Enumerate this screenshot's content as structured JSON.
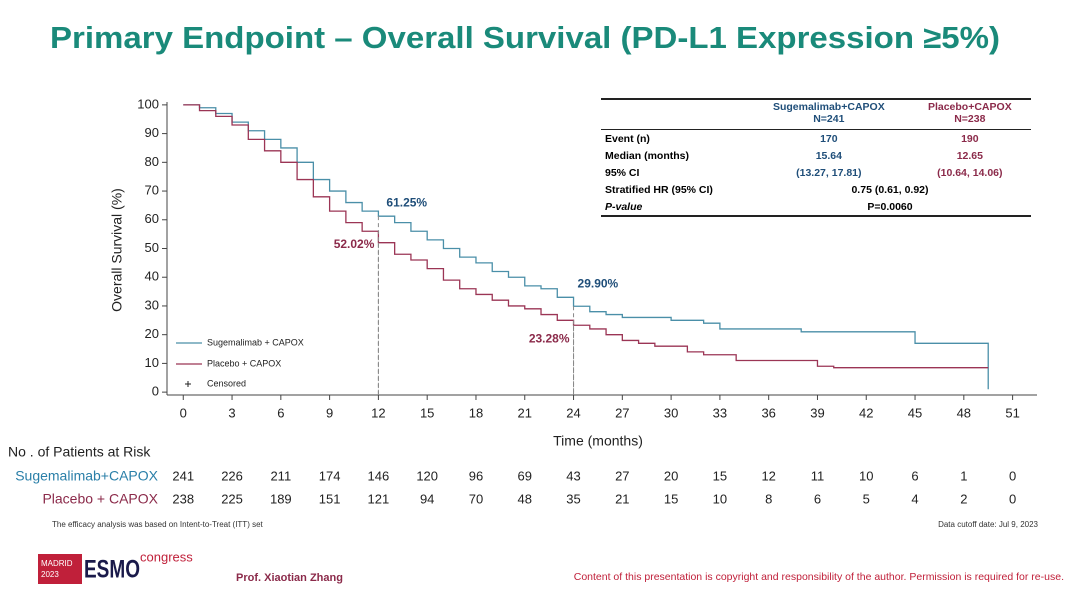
{
  "slide_title": "Primary Endpoint – Overall Survival (PD-L1 Expression ≥5%)",
  "chart_data": {
    "type": "line",
    "step": true,
    "ylabel": "Overall Survival (%)",
    "xlabel": "Time (months)",
    "xlim": [
      -1,
      52.5
    ],
    "ylim": [
      -1,
      101
    ],
    "xticks": [
      0,
      3,
      6,
      9,
      12,
      15,
      18,
      21,
      24,
      27,
      30,
      33,
      36,
      39,
      42,
      45,
      48,
      51
    ],
    "yticks": [
      0,
      10,
      20,
      30,
      40,
      50,
      60,
      70,
      80,
      90,
      100
    ],
    "x": [
      0,
      1,
      2,
      3,
      4,
      5,
      6,
      7,
      8,
      9,
      10,
      11,
      12,
      13,
      14,
      15,
      16,
      17,
      18,
      19,
      20,
      21,
      22,
      23,
      24,
      25,
      26,
      27,
      28,
      29,
      30,
      31,
      32,
      33,
      34,
      35,
      36,
      37,
      38,
      39,
      40,
      41,
      42,
      43,
      44,
      45,
      46,
      47,
      48,
      49,
      49.5
    ],
    "series": [
      {
        "name": "Sugemalimab + CAPOX",
        "color": "#4a8fa8",
        "values": [
          100,
          99,
          97,
          94,
          91,
          88,
          85,
          80,
          74,
          70,
          66,
          63,
          61.25,
          59,
          56,
          53,
          50,
          47,
          45,
          42,
          40,
          37,
          36,
          33,
          29.9,
          28,
          27,
          26,
          26,
          26,
          25,
          25,
          24,
          22,
          22,
          22,
          22,
          22,
          21,
          21,
          21,
          21,
          21,
          21,
          21,
          17,
          17,
          17,
          17,
          17,
          1
        ]
      },
      {
        "name": "Placebo + CAPOX",
        "color": "#9b3555",
        "values": [
          100,
          98,
          96,
          93,
          88,
          84,
          80,
          74,
          68,
          63,
          59,
          56,
          52.02,
          48,
          46,
          43,
          39,
          36,
          34,
          32,
          30,
          29,
          27,
          25,
          23.28,
          22,
          20,
          18,
          17,
          16,
          16,
          14,
          13,
          13,
          11,
          11,
          11,
          11,
          11,
          9,
          8.5,
          8.5,
          8.5,
          8.5,
          8.5,
          8.5,
          8.5,
          8.5,
          8.5,
          8.5,
          8.5
        ]
      }
    ],
    "censored_label": "Censored",
    "annotations": [
      {
        "text": "61.25%",
        "x": 12,
        "y": 61.25,
        "color": "#1f4e79"
      },
      {
        "text": "52.02%",
        "x": 12,
        "y": 52.02,
        "color": "#8b2a4a"
      },
      {
        "text": "29.90%",
        "x": 24,
        "y": 29.9,
        "color": "#1f4e79"
      },
      {
        "text": "23.28%",
        "x": 24,
        "y": 23.28,
        "color": "#8b2a4a"
      }
    ]
  },
  "hr_table": {
    "header": [
      [
        "Sugemalimab+CAPOX",
        "N=241"
      ],
      [
        "Placebo+CAPOX",
        "N=238"
      ]
    ],
    "rows": [
      [
        "Event (n)",
        "170",
        "190"
      ],
      [
        "Median (months)",
        "15.64",
        "12.65"
      ],
      [
        "95% CI",
        "(13.27, 17.81)",
        "(10.64, 14.06)"
      ],
      [
        "Stratified HR (95% CI)",
        "0.75 (0.61, 0.92)"
      ],
      [
        "P-value",
        "P=0.0060"
      ]
    ]
  },
  "risk_table": {
    "title": "No . of Patients at Risk",
    "rows": [
      {
        "label": "Sugemalimab+CAPOX",
        "values": [
          "241",
          "226",
          "211",
          "174",
          "146",
          "120",
          "96",
          "69",
          "43",
          "27",
          "20",
          "15",
          "12",
          "11",
          "10",
          "6",
          "1",
          "0"
        ]
      },
      {
        "label": "Placebo + CAPOX",
        "values": [
          "238",
          "225",
          "189",
          "151",
          "121",
          "94",
          "70",
          "48",
          "35",
          "21",
          "15",
          "10",
          "8",
          "6",
          "5",
          "4",
          "2",
          "0"
        ]
      }
    ]
  },
  "footnote_left": "The efficacy analysis was based on Intent-to-Treat (ITT) set",
  "footnote_right": "Data cutoff date: Jul 9, 2023",
  "footer": {
    "city": "MADRID",
    "year": "2023",
    "brand": "ESMO",
    "event": "congress",
    "presenter": "Prof. Xiaotian Zhang",
    "copyright": "Content of this presentation is copyright and responsibility of the author. Permission is required for re-use."
  }
}
